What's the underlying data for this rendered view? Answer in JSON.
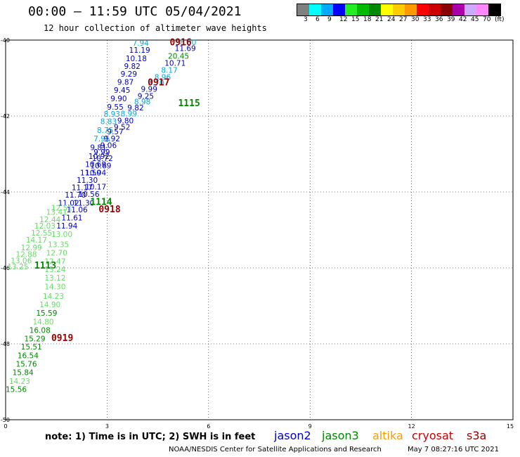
{
  "title": "00:00 – 11:59 UTC 05/04/2021",
  "subtitle": "12 hour collection of altimeter wave heights",
  "colorbar": {
    "swatches": [
      "#808080",
      "#00ffff",
      "#00aaff",
      "#0000ff",
      "#22ee22",
      "#00bb00",
      "#008800",
      "#ffff00",
      "#ffcc00",
      "#ff9900",
      "#ff0000",
      "#cc0000",
      "#880000",
      "#aa00aa",
      "#ccaaff",
      "#ff88ff",
      "#000000"
    ],
    "labels": [
      "3",
      "6",
      "9",
      "12",
      "15",
      "18",
      "21",
      "24",
      "27",
      "30",
      "33",
      "36",
      "39",
      "42",
      "45",
      "70",
      "(ft)"
    ]
  },
  "axes": {
    "x_ticks": [
      "0",
      "3",
      "6",
      "9",
      "12",
      "15"
    ],
    "y_ticks": [
      "40",
      "42",
      "44",
      "46",
      "48",
      "50"
    ],
    "x_range": [
      0,
      15
    ],
    "y_range": [
      40,
      50
    ]
  },
  "colors": {
    "jason2": "#0000cc",
    "jason3": "#008800",
    "jason3_light": "#66dd66",
    "altika": "#ff9900",
    "cryosat": "#cc0000",
    "s3a": "#990000",
    "cyan": "#00aadd",
    "grid": "#000000"
  },
  "observations": [
    {
      "text": "7.94",
      "x": 3.75,
      "y": 40.06,
      "c": "cyan"
    },
    {
      "text": "8.00",
      "x": 5.15,
      "y": 40.04,
      "c": "cyan"
    },
    {
      "text": "11.19",
      "x": 3.65,
      "y": 40.24,
      "c": "jason2"
    },
    {
      "text": "11.69",
      "x": 5.0,
      "y": 40.19,
      "c": "jason2"
    },
    {
      "text": "20.45",
      "x": 4.8,
      "y": 40.4,
      "c": "jason3"
    },
    {
      "text": "10.18",
      "x": 3.55,
      "y": 40.46,
      "c": "jason2"
    },
    {
      "text": "10.71",
      "x": 4.7,
      "y": 40.58,
      "c": "jason2"
    },
    {
      "text": "9.82",
      "x": 3.5,
      "y": 40.67,
      "c": "jason2"
    },
    {
      "text": "8.17",
      "x": 4.6,
      "y": 40.77,
      "c": "cyan"
    },
    {
      "text": "9.29",
      "x": 3.4,
      "y": 40.87,
      "c": "jason2"
    },
    {
      "text": "8.96",
      "x": 4.4,
      "y": 40.95,
      "c": "cyan"
    },
    {
      "text": "9.87",
      "x": 3.3,
      "y": 41.08,
      "c": "jason2"
    },
    {
      "text": "9.70",
      "x": 4.2,
      "y": 41.1,
      "c": "cyan"
    },
    {
      "text": "9.99",
      "x": 4.0,
      "y": 41.27,
      "c": "jason2"
    },
    {
      "text": "9.45",
      "x": 3.2,
      "y": 41.3,
      "c": "jason2"
    },
    {
      "text": "9.25",
      "x": 3.9,
      "y": 41.45,
      "c": "jason2"
    },
    {
      "text": "9.90",
      "x": 3.1,
      "y": 41.52,
      "c": "jason2"
    },
    {
      "text": "8.98",
      "x": 3.8,
      "y": 41.6,
      "c": "cyan"
    },
    {
      "text": "9.55",
      "x": 3.0,
      "y": 41.74,
      "c": "jason2"
    },
    {
      "text": "9.82",
      "x": 3.6,
      "y": 41.76,
      "c": "jason2"
    },
    {
      "text": "8.93",
      "x": 2.9,
      "y": 41.93,
      "c": "cyan"
    },
    {
      "text": "8.99",
      "x": 3.4,
      "y": 41.92,
      "c": "cyan"
    },
    {
      "text": "8.83",
      "x": 2.8,
      "y": 42.12,
      "c": "cyan"
    },
    {
      "text": "9.80",
      "x": 3.3,
      "y": 42.1,
      "c": "jason2"
    },
    {
      "text": "9.52",
      "x": 3.2,
      "y": 42.27,
      "c": "jason2"
    },
    {
      "text": "8.75",
      "x": 2.7,
      "y": 42.35,
      "c": "cyan"
    },
    {
      "text": "9.57",
      "x": 3.0,
      "y": 42.39,
      "c": "jason2"
    },
    {
      "text": "7.95",
      "x": 2.6,
      "y": 42.57,
      "c": "cyan"
    },
    {
      "text": "9.92",
      "x": 2.9,
      "y": 42.57,
      "c": "jason2"
    },
    {
      "text": "9.06",
      "x": 2.8,
      "y": 42.75,
      "c": "jason2"
    },
    {
      "text": "9.81",
      "x": 2.5,
      "y": 42.81,
      "c": "jason2"
    },
    {
      "text": "9.99",
      "x": 2.6,
      "y": 42.93,
      "c": "jason2"
    },
    {
      "text": "10.92",
      "x": 2.45,
      "y": 43.04,
      "c": "jason2"
    },
    {
      "text": "10.72",
      "x": 2.55,
      "y": 43.09,
      "c": "jason2"
    },
    {
      "text": "10.69",
      "x": 2.35,
      "y": 43.25,
      "c": "jason2"
    },
    {
      "text": "10.69",
      "x": 2.5,
      "y": 43.29,
      "c": "jason2"
    },
    {
      "text": "11.50",
      "x": 2.2,
      "y": 43.47,
      "c": "jason2"
    },
    {
      "text": "10.94",
      "x": 2.35,
      "y": 43.47,
      "c": "jason2"
    },
    {
      "text": "11.30",
      "x": 2.1,
      "y": 43.67,
      "c": "jason2"
    },
    {
      "text": "11.17",
      "x": 1.95,
      "y": 43.86,
      "c": "jason2"
    },
    {
      "text": "10.17",
      "x": 2.35,
      "y": 43.84,
      "c": "jason2"
    },
    {
      "text": "11.70",
      "x": 1.75,
      "y": 44.06,
      "c": "jason2"
    },
    {
      "text": "10.56",
      "x": 2.15,
      "y": 44.04,
      "c": "jason2"
    },
    {
      "text": "11.02",
      "x": 1.55,
      "y": 44.27,
      "c": "jason2"
    },
    {
      "text": "11.30",
      "x": 2.0,
      "y": 44.27,
      "c": "jason2"
    },
    {
      "text": "1114",
      "x": 2.5,
      "y": 44.25,
      "c": "jason3",
      "big": true
    },
    {
      "text": "12.51",
      "x": 1.35,
      "y": 44.4,
      "c": "jason3_light"
    },
    {
      "text": "11.06",
      "x": 1.8,
      "y": 44.44,
      "c": "jason2"
    },
    {
      "text": "0918",
      "x": 2.75,
      "y": 44.44,
      "c": "s3a",
      "big": true
    },
    {
      "text": "13.41",
      "x": 1.2,
      "y": 44.51,
      "c": "jason3_light"
    },
    {
      "text": "11.61",
      "x": 1.65,
      "y": 44.66,
      "c": "jason2"
    },
    {
      "text": "12.44",
      "x": 1.0,
      "y": 44.7,
      "c": "jason3_light"
    },
    {
      "text": "12.03",
      "x": 0.85,
      "y": 44.87,
      "c": "jason3_light"
    },
    {
      "text": "11.94",
      "x": 1.5,
      "y": 44.87,
      "c": "jason2"
    },
    {
      "text": "12.55",
      "x": 0.75,
      "y": 45.06,
      "c": "jason3_light"
    },
    {
      "text": "13.00",
      "x": 1.35,
      "y": 45.09,
      "c": "jason3_light"
    },
    {
      "text": "14.17",
      "x": 0.6,
      "y": 45.24,
      "c": "jason3_light"
    },
    {
      "text": "12.99",
      "x": 0.45,
      "y": 45.44,
      "c": "jason3_light"
    },
    {
      "text": "13.35",
      "x": 1.25,
      "y": 45.36,
      "c": "jason3_light"
    },
    {
      "text": "12.88",
      "x": 0.3,
      "y": 45.62,
      "c": "jason3_light"
    },
    {
      "text": "12.70",
      "x": 1.2,
      "y": 45.58,
      "c": "jason3_light"
    },
    {
      "text": "13.06",
      "x": 0.15,
      "y": 45.79,
      "c": "jason3_light"
    },
    {
      "text": "12.47",
      "x": 1.15,
      "y": 45.81,
      "c": "jason3_light"
    },
    {
      "text": "13.25",
      "x": 0.05,
      "y": 45.94,
      "c": "jason3_light"
    },
    {
      "text": "1113",
      "x": 0.85,
      "y": 45.93,
      "c": "jason3",
      "big": true
    },
    {
      "text": "13.24",
      "x": 1.15,
      "y": 46.02,
      "c": "jason3_light"
    },
    {
      "text": "13.12",
      "x": 1.15,
      "y": 46.24,
      "c": "jason3_light"
    },
    {
      "text": "14.30",
      "x": 1.15,
      "y": 46.47,
      "c": "jason3_light"
    },
    {
      "text": "14.23",
      "x": 1.1,
      "y": 46.72,
      "c": "jason3_light"
    },
    {
      "text": "14.90",
      "x": 1.0,
      "y": 46.94,
      "c": "jason3_light"
    },
    {
      "text": "15.59",
      "x": 0.9,
      "y": 47.17,
      "c": "jason3"
    },
    {
      "text": "14.80",
      "x": 0.8,
      "y": 47.4,
      "c": "jason3_light"
    },
    {
      "text": "16.08",
      "x": 0.7,
      "y": 47.62,
      "c": "jason3"
    },
    {
      "text": "15.29",
      "x": 0.55,
      "y": 47.84,
      "c": "jason3"
    },
    {
      "text": "0919",
      "x": 1.35,
      "y": 47.83,
      "c": "s3a",
      "big": true
    },
    {
      "text": "15.51",
      "x": 0.45,
      "y": 48.06,
      "c": "jason3"
    },
    {
      "text": "16.54",
      "x": 0.35,
      "y": 48.29,
      "c": "jason3"
    },
    {
      "text": "15.76",
      "x": 0.3,
      "y": 48.51,
      "c": "jason3"
    },
    {
      "text": "15.84",
      "x": 0.2,
      "y": 48.73,
      "c": "jason3"
    },
    {
      "text": "14.23",
      "x": 0.1,
      "y": 48.96,
      "c": "jason3_light"
    },
    {
      "text": "15.56",
      "x": 0.0,
      "y": 49.18,
      "c": "jason3"
    },
    {
      "text": "0916",
      "x": 4.85,
      "y": 40.05,
      "c": "s3a",
      "big": true
    },
    {
      "text": "0917",
      "x": 4.2,
      "y": 41.1,
      "c": "s3a",
      "big": true
    },
    {
      "text": "1115",
      "x": 5.1,
      "y": 41.65,
      "c": "jason3",
      "big": true
    }
  ],
  "note": "note: 1) Time is in UTC; 2) SWH is in feet",
  "legend": [
    {
      "label": "jason2",
      "color": "#0000cc"
    },
    {
      "label": "jason3",
      "color": "#008800"
    },
    {
      "label": "altika",
      "color": "#ff9900"
    },
    {
      "label": "cryosat",
      "color": "#cc0000"
    },
    {
      "label": "s3a",
      "color": "#990000"
    }
  ],
  "credit": "NOAA/NESDIS Center for Satellite Applications and Research",
  "timestamp": "May  7 08:27:16 UTC 2021"
}
